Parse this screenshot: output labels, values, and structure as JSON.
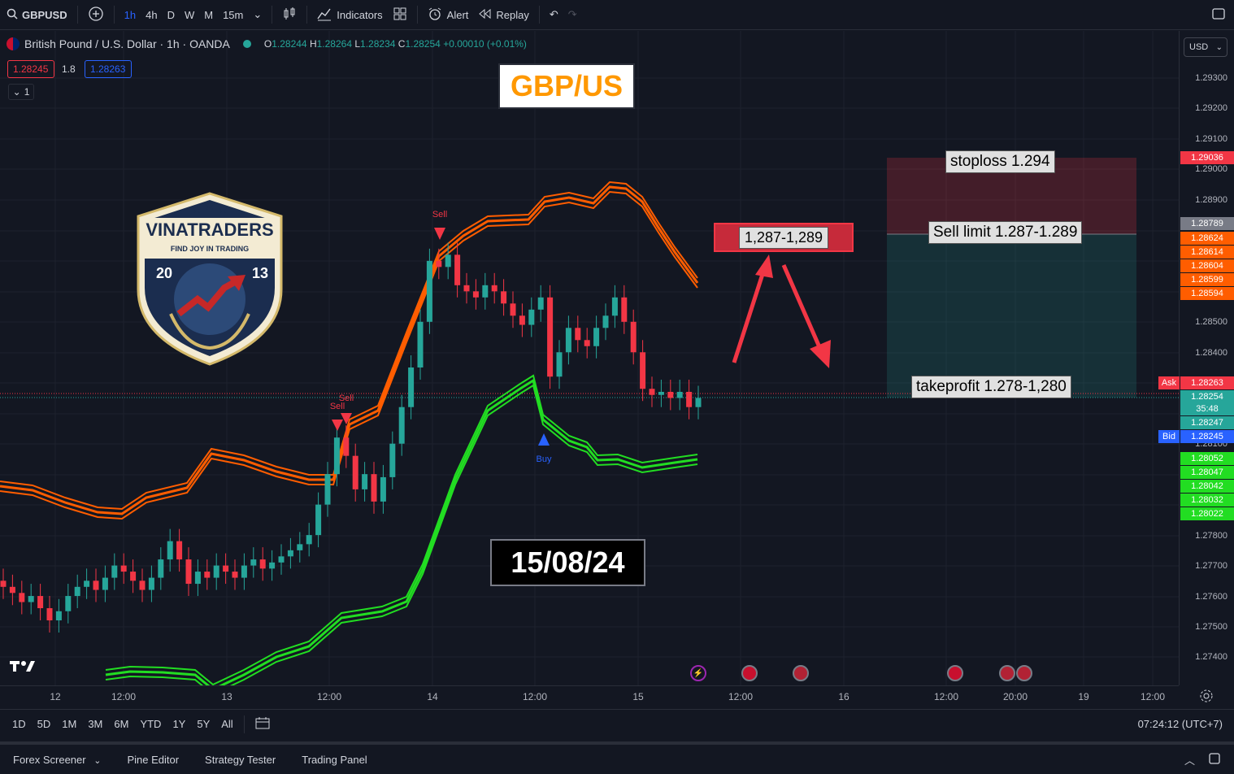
{
  "toolbar": {
    "symbol": "GBPUSD",
    "intervals": [
      "1h",
      "4h",
      "D",
      "W",
      "M",
      "15m"
    ],
    "active_interval": "1h",
    "indicators_label": "Indicators",
    "alert_label": "Alert",
    "replay_label": "Replay"
  },
  "legend": {
    "title": "British Pound / U.S. Dollar · 1h · OANDA",
    "o_label": "O",
    "o": "1.28244",
    "h_label": "H",
    "h": "1.28264",
    "l_label": "L",
    "l": "1.28234",
    "c_label": "C",
    "c": "1.28254",
    "change": "+0.00010 (+0.01%)",
    "sell_price": "1.28245",
    "spread": "1.8",
    "buy_price": "1.28263",
    "collapse_count": "1"
  },
  "currency": "USD",
  "price_scale": {
    "ticks": [
      "1.29300",
      "1.29200",
      "1.29100",
      "1.29000",
      "1.28900",
      "1.28500",
      "1.28400",
      "1.28100",
      "1.27800",
      "1.27700",
      "1.27600",
      "1.27500",
      "1.27400"
    ],
    "labels": [
      {
        "text": "1.29036",
        "color": "#f23645"
      },
      {
        "text": "1.28789",
        "color": "#787b86"
      },
      {
        "text": "1.28624",
        "color": "#ff5d00"
      },
      {
        "text": "1.28614",
        "color": "#ff5d00"
      },
      {
        "text": "1.28604",
        "color": "#ff5d00"
      },
      {
        "text": "1.28599",
        "color": "#ff5d00"
      },
      {
        "text": "1.28594",
        "color": "#ff5d00"
      },
      {
        "text": "1.28263",
        "color": "#f23645"
      },
      {
        "text": "1.28254",
        "color": "#26a69a"
      },
      {
        "text": "35:48",
        "color": "#26a69a"
      },
      {
        "text": "1.28247",
        "color": "#26a69a"
      },
      {
        "text": "1.28245",
        "color": "#2962ff"
      },
      {
        "text": "1.28052",
        "color": "#22dd22"
      },
      {
        "text": "1.28047",
        "color": "#22dd22"
      },
      {
        "text": "1.28042",
        "color": "#22dd22"
      },
      {
        "text": "1.28032",
        "color": "#22dd22"
      },
      {
        "text": "1.28022",
        "color": "#22dd22"
      }
    ],
    "ask_tag": "Ask",
    "bid_tag": "Bid"
  },
  "time_scale": [
    "12",
    "12:00",
    "13",
    "12:00",
    "14",
    "12:00",
    "15",
    "12:00",
    "16",
    "12:00",
    "20:00",
    "19",
    "12:00"
  ],
  "range_bar": {
    "ranges": [
      "1D",
      "5D",
      "1M",
      "3M",
      "6M",
      "YTD",
      "1Y",
      "5Y",
      "All"
    ],
    "clock": "07:24:12 (UTC+7)"
  },
  "bottom_tabs": [
    "Forex Screener",
    "Pine Editor",
    "Strategy Tester",
    "Trading Panel"
  ],
  "annotations": {
    "title": "GBP/US",
    "date": "15/08/24",
    "range_callout": "1,287-1,289",
    "stoploss": "stoploss 1.294",
    "sell_limit": "Sell limit 1.287-1.289",
    "takeprofit": "takeprofit 1.278-1,280",
    "signal_sell": "Sell",
    "signal_buy": "Buy"
  },
  "logo": {
    "name": "VINATRADERS",
    "tagline": "FIND JOY IN TRADING",
    "year_left": "20",
    "year_right": "13"
  },
  "colors": {
    "bull": "#26a69a",
    "bear": "#f23645",
    "upper_band": "#ff5d00",
    "lower_band": "#22dd22",
    "background": "#131722"
  }
}
